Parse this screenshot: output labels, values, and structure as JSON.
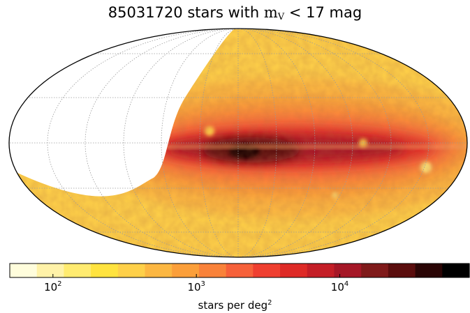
{
  "title": {
    "prefix": "85031720 stars with ",
    "math_main": "m",
    "math_sub": "V",
    "math_rel": " < ",
    "suffix": "17 mag"
  },
  "colorbar": {
    "label_text": "stars per deg",
    "label_sup": "2",
    "scale": "log",
    "range": [
      50,
      80000
    ],
    "ticks": [
      {
        "base": "10",
        "exp": "2",
        "value": 100
      },
      {
        "base": "10",
        "exp": "3",
        "value": 1000
      },
      {
        "base": "10",
        "exp": "4",
        "value": 10000
      }
    ],
    "colors": [
      "#fffddc",
      "#fff2a8",
      "#ffeb70",
      "#ffe33f",
      "#fed049",
      "#fcb742",
      "#fb9f3a",
      "#f9823a",
      "#f6613a",
      "#ef3f30",
      "#de2a26",
      "#c41e26",
      "#a51726",
      "#7f1a1a",
      "#5a0d0d",
      "#2a0505",
      "#000000"
    ]
  },
  "chart_data": {
    "type": "heatmap",
    "projection": "mollweide",
    "title": "85031720 stars with m_V < 17 mag",
    "colorbar_label": "stars per deg^2",
    "colorbar_scale": "log",
    "colorbar_ticks": [
      100,
      1000,
      10000
    ],
    "colorbar_range": [
      50,
      80000
    ],
    "coverage": "survey footprint covers the right-hand portion of the sky; left part blank",
    "features": [
      {
        "name": "galactic plane band",
        "approx_density": 20000
      },
      {
        "name": "galactic center",
        "approx_density": 80000
      },
      {
        "name": "high latitude",
        "approx_density": 300
      }
    ],
    "grid": true
  }
}
